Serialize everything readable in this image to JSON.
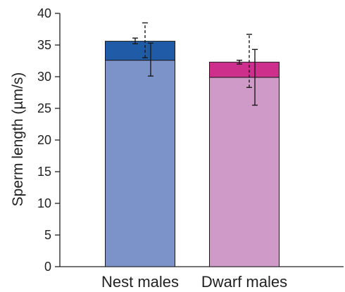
{
  "chart_data": {
    "type": "bar",
    "stacked": true,
    "categories": [
      "Nest males",
      "Dwarf males"
    ],
    "ylabel": "Sperm length (µm/s)",
    "xlabel": "",
    "ylim": [
      0,
      40
    ],
    "yticks": [
      0,
      5,
      10,
      15,
      20,
      25,
      30,
      35,
      40
    ],
    "grid": false,
    "series": [
      {
        "values": [
          32.6,
          29.9
        ],
        "errors": [
          [
            30.1,
            35.3
          ],
          [
            25.5,
            34.3
          ]
        ],
        "error_style": "solid",
        "colors": [
          "#7b93c9",
          "#cf9ac7"
        ]
      },
      {
        "values": [
          3.0,
          2.4
        ],
        "totals": [
          35.6,
          32.3
        ],
        "errors": [
          [
            35.2,
            36.1
          ],
          [
            32.0,
            32.6
          ]
        ],
        "error_style": "solid",
        "colors": [
          "#1f5ba7",
          "#cc2f8c"
        ]
      }
    ],
    "total_errors": [
      [
        33.0,
        38.5
      ],
      [
        28.3,
        36.7
      ]
    ],
    "total_error_style": "dashed"
  }
}
